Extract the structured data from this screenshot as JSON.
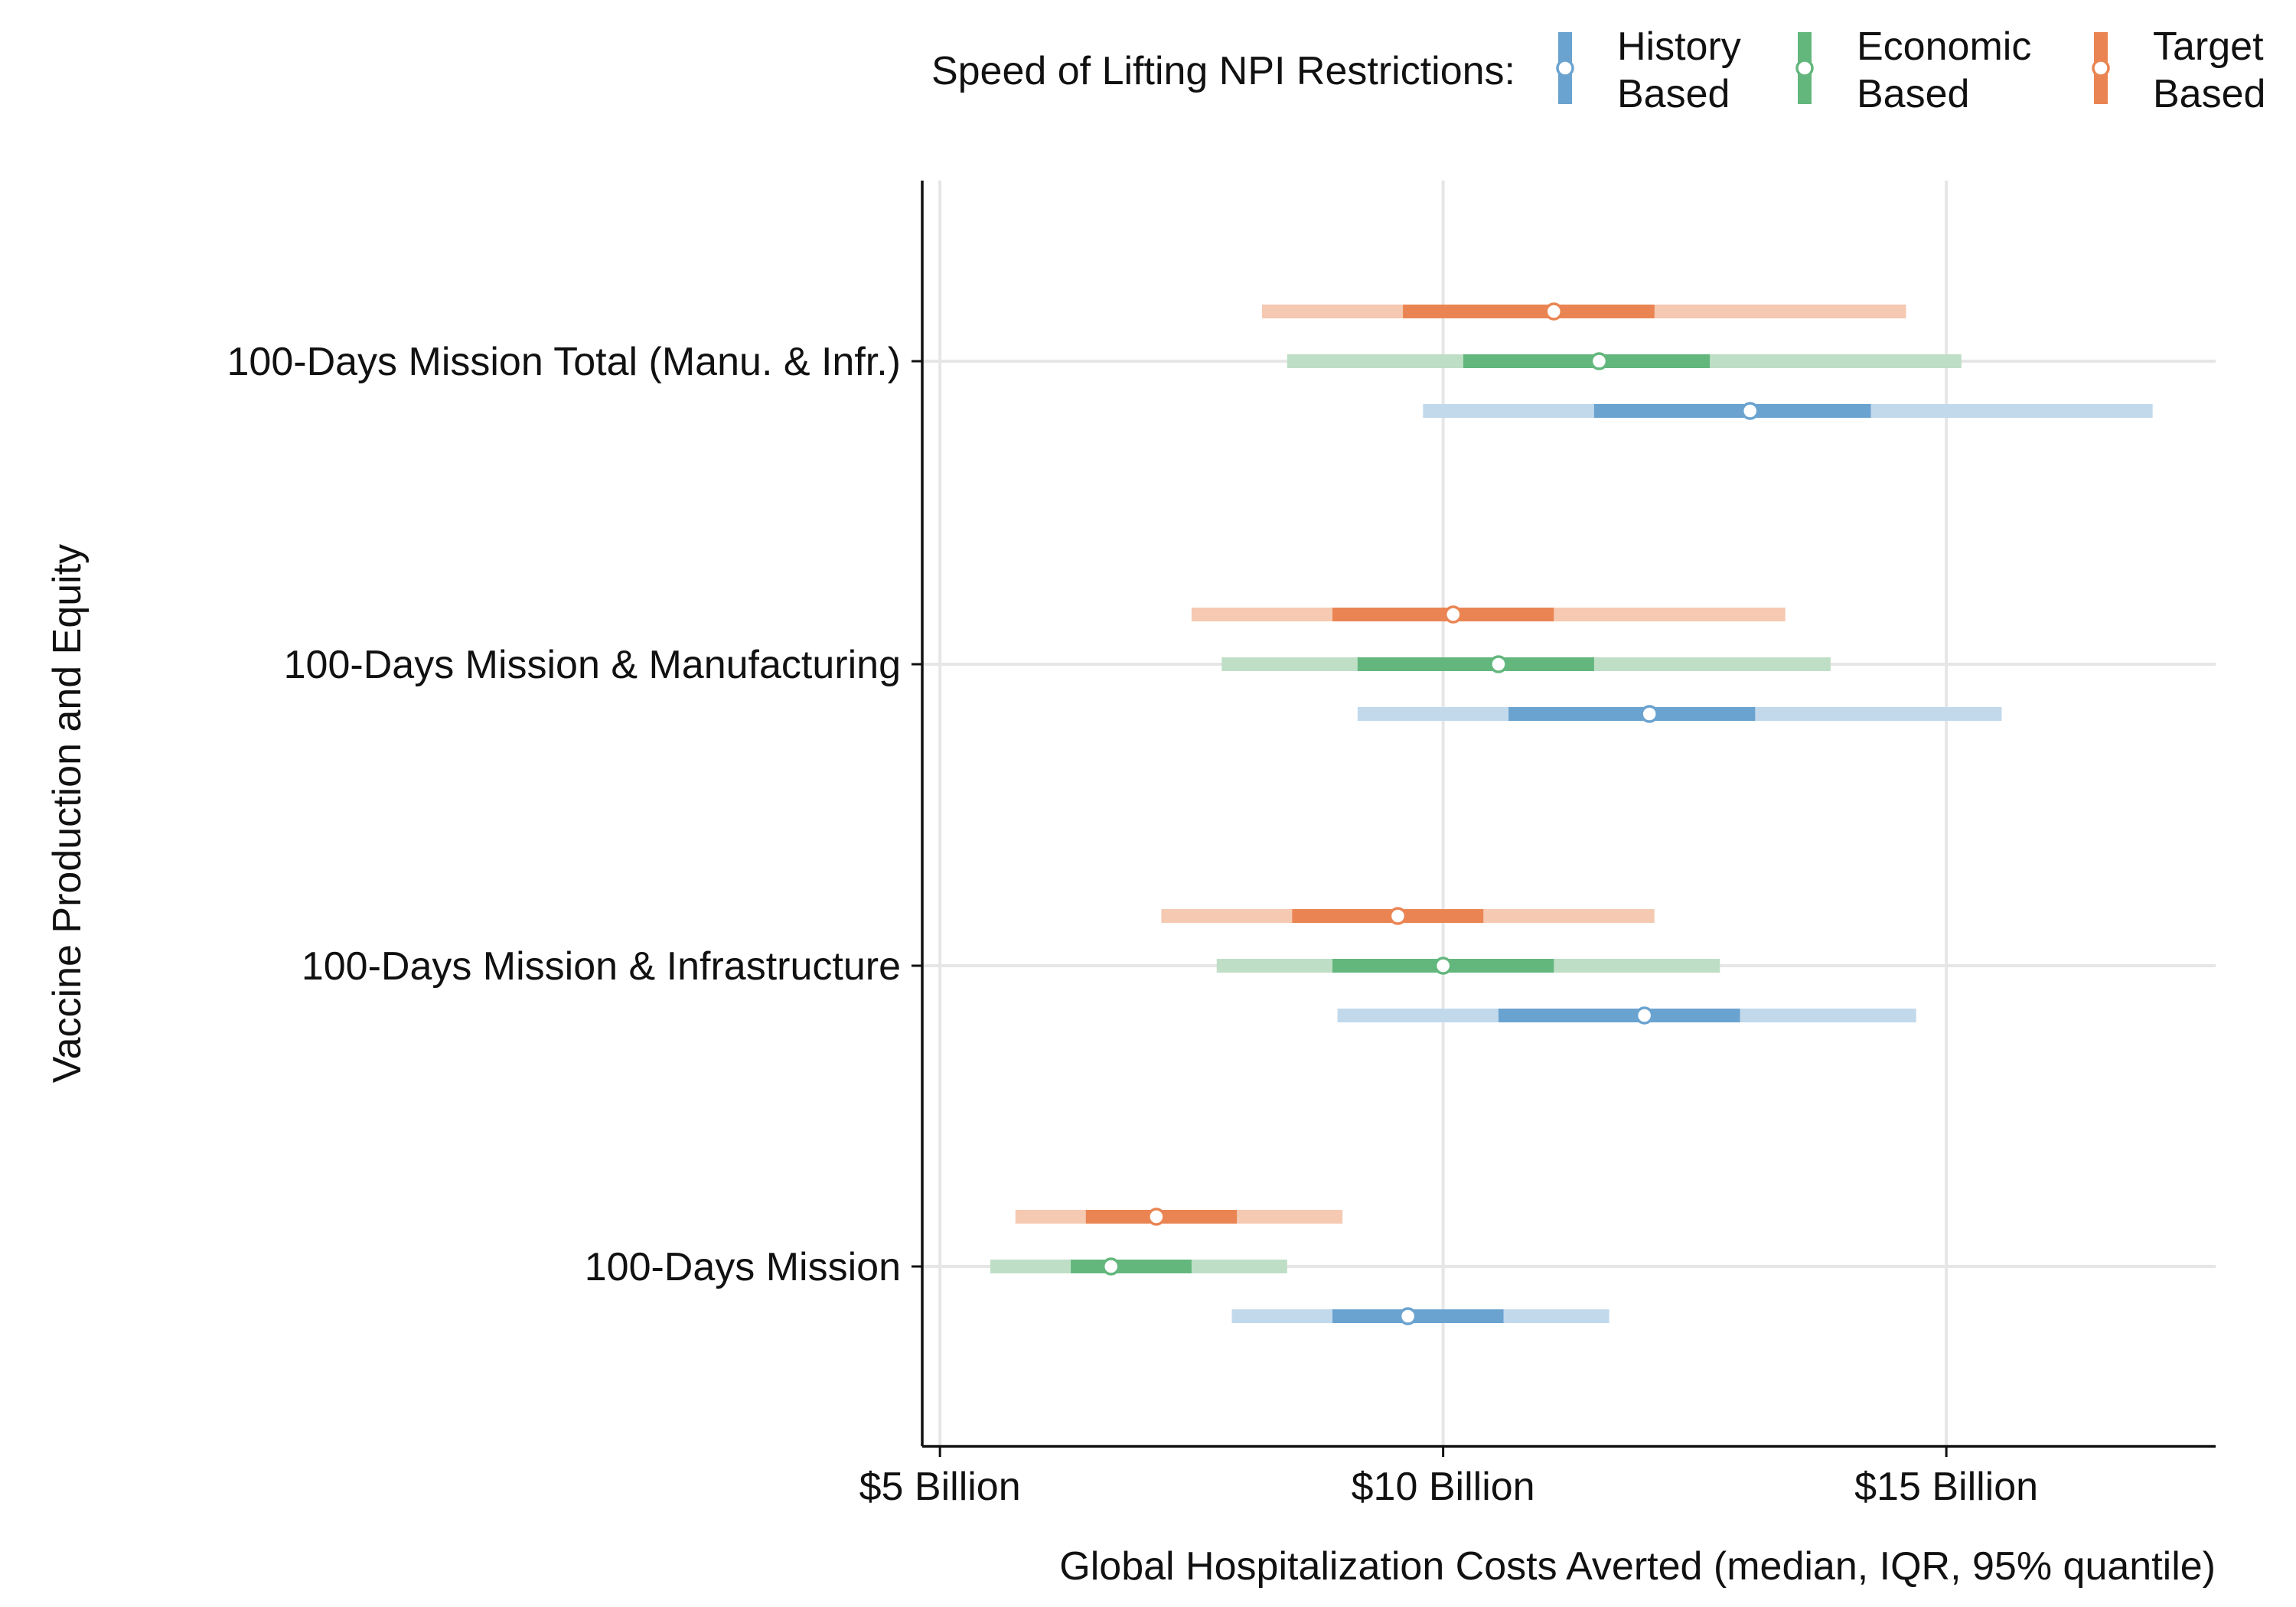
{
  "chart_data": {
    "type": "interval",
    "title": "",
    "xlabel": "Global Hospitalization Costs Averted (median, IQR, 95% quantile)",
    "ylabel": "Vaccine Production and Equity",
    "xlim": [
      4.9,
      17.6
    ],
    "x_unit": "Billion USD",
    "x_ticks": [
      5,
      10,
      15
    ],
    "x_tick_labels": [
      "$5 Billion",
      "$10 Billion",
      "$15 Billion"
    ],
    "grid": "major gridlines on both axes",
    "legend_title": "Speed of Lifting NPI Restrictions:",
    "legend_position": "top",
    "categories": [
      "100-Days Mission",
      "100-Days Mission & Infrastructure",
      "100-Days Mission & Manufacturing",
      "100-Days Mission Total (Manu. & Infr.)"
    ],
    "series": [
      {
        "name": "History Based",
        "legend_lines": [
          "History",
          "Based"
        ],
        "color": "#6aa3d0",
        "color_light": "#c2d9ec",
        "median": [
          9.65,
          12.0,
          12.05,
          13.05
        ],
        "iqr": [
          [
            8.9,
            10.6
          ],
          [
            10.55,
            12.95
          ],
          [
            10.65,
            13.1
          ],
          [
            11.5,
            14.25
          ]
        ],
        "q95": [
          [
            7.9,
            11.65
          ],
          [
            8.95,
            14.7
          ],
          [
            9.15,
            15.55
          ],
          [
            9.8,
            17.05
          ]
        ]
      },
      {
        "name": "Economic Based",
        "legend_lines": [
          "Economic",
          "Based"
        ],
        "color": "#63b77d",
        "color_light": "#bfdec6",
        "median": [
          6.7,
          10.0,
          10.55,
          11.55
        ],
        "iqr": [
          [
            6.3,
            7.5
          ],
          [
            8.9,
            11.1
          ],
          [
            9.15,
            11.5
          ],
          [
            10.2,
            12.65
          ]
        ],
        "q95": [
          [
            5.5,
            8.45
          ],
          [
            7.75,
            12.75
          ],
          [
            7.8,
            13.85
          ],
          [
            8.45,
            15.15
          ]
        ]
      },
      {
        "name": "Target Based",
        "legend_lines": [
          "Target",
          "Based"
        ],
        "color": "#ea8553",
        "color_light": "#f5c9b2",
        "median": [
          7.15,
          9.55,
          10.1,
          11.1
        ],
        "iqr": [
          [
            6.45,
            7.95
          ],
          [
            8.5,
            10.4
          ],
          [
            8.9,
            11.1
          ],
          [
            9.6,
            12.1
          ]
        ],
        "q95": [
          [
            5.75,
            9.0
          ],
          [
            7.2,
            12.1
          ],
          [
            7.5,
            13.4
          ],
          [
            8.2,
            14.6
          ]
        ]
      }
    ]
  }
}
